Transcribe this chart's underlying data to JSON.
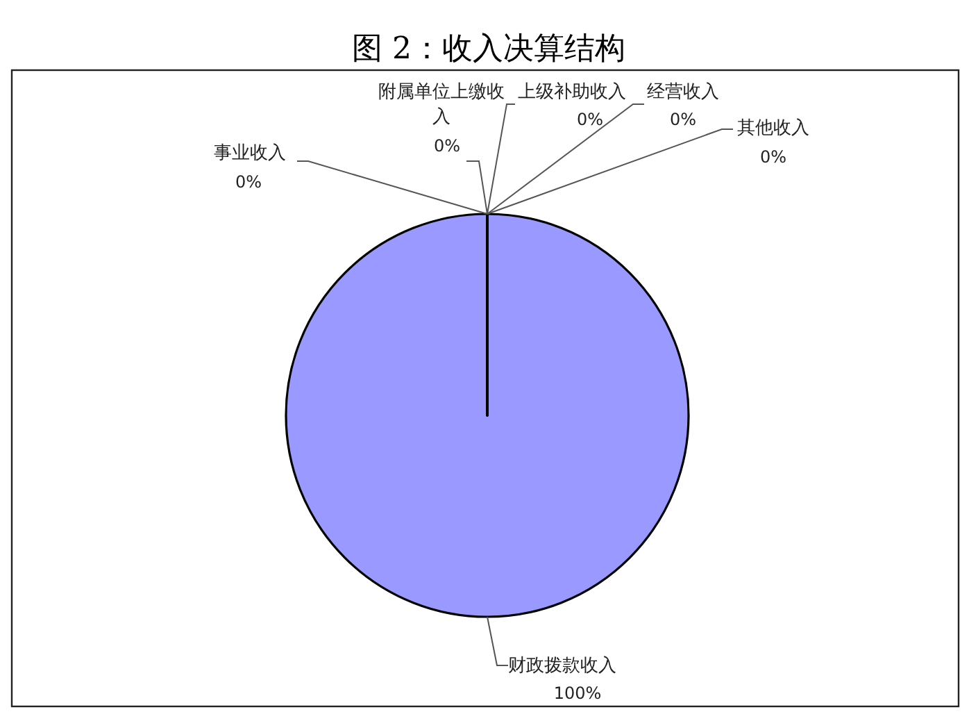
{
  "chart_data": {
    "type": "pie",
    "title": "图 2：收入决算结构",
    "categories": [
      "财政拨款收入",
      "事业收入",
      "附属单位上缴收入",
      "上级补助收入",
      "经营收入",
      "其他收入"
    ],
    "values": [
      100,
      0,
      0,
      0,
      0,
      0
    ],
    "value_labels": [
      "100%",
      "0%",
      "0%",
      "0%",
      "0%",
      "0%"
    ],
    "colors": [
      "#9999ff",
      "#993366",
      "#ffffcc",
      "#ccffff",
      "#660066",
      "#ff8080"
    ]
  }
}
